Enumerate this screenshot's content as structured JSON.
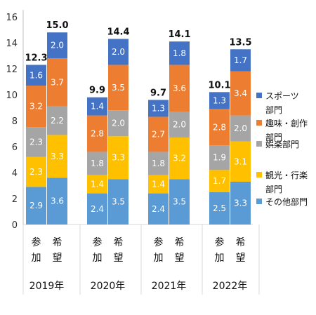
{
  "chart_data": {
    "type": "bar",
    "stacked": true,
    "title": "",
    "xlabel": "",
    "ylabel": "",
    "ylim": [
      0,
      16
    ],
    "yticks": [
      0,
      2,
      4,
      6,
      8,
      10,
      12,
      14,
      16
    ],
    "grid": false,
    "legend_position": "right",
    "groups": [
      "2019年",
      "2020年",
      "2021年",
      "2022年"
    ],
    "bar_labels": [
      [
        "参",
        "加"
      ],
      [
        "希",
        "望"
      ]
    ],
    "bars": [
      {
        "group": "2019年",
        "kind": "参加",
        "values": [
          2.9,
          2.3,
          2.3,
          3.2,
          1.6
        ],
        "total": "12.3"
      },
      {
        "group": "2019年",
        "kind": "希望",
        "values": [
          3.6,
          3.3,
          2.2,
          3.7,
          2.0
        ],
        "total": "15.0"
      },
      {
        "group": "2020年",
        "kind": "参加",
        "values": [
          2.4,
          1.4,
          1.8,
          2.8,
          1.4
        ],
        "total": "9.9"
      },
      {
        "group": "2020年",
        "kind": "希望",
        "values": [
          3.5,
          3.3,
          2.0,
          3.5,
          2.0
        ],
        "total": "14.4"
      },
      {
        "group": "2021年",
        "kind": "参加",
        "values": [
          2.4,
          1.4,
          1.8,
          2.7,
          1.3
        ],
        "total": "9.7"
      },
      {
        "group": "2021年",
        "kind": "希望",
        "values": [
          3.5,
          3.2,
          2.0,
          3.6,
          1.8
        ],
        "total": "14.1"
      },
      {
        "group": "2022年",
        "kind": "参加",
        "values": [
          2.5,
          1.7,
          1.9,
          2.8,
          1.3
        ],
        "total": "10.1"
      },
      {
        "group": "2022年",
        "kind": "希望",
        "values": [
          3.3,
          3.1,
          2.0,
          3.4,
          1.7
        ],
        "total": "13.5"
      }
    ],
    "series": [
      {
        "name": "その他部門",
        "color": "#5b9bd5"
      },
      {
        "name": "観光・行楽部門",
        "color": "#ffc000"
      },
      {
        "name": "娯楽部門",
        "color": "#a5a5a5"
      },
      {
        "name": "趣味・創作部門",
        "color": "#ed7d31"
      },
      {
        "name": "スポーツ部門",
        "color": "#4472c4"
      }
    ],
    "legend": [
      {
        "series": 4,
        "lines": [
          "スポーツ",
          "部門"
        ]
      },
      {
        "series": 3,
        "lines": [
          "趣味・創作",
          "部門"
        ]
      },
      {
        "series": 2,
        "lines": [
          "娯楽部門"
        ]
      },
      {
        "series": 1,
        "lines": [
          "観光・行楽",
          "部門"
        ]
      },
      {
        "series": 0,
        "lines": [
          "その他部門"
        ]
      }
    ]
  }
}
